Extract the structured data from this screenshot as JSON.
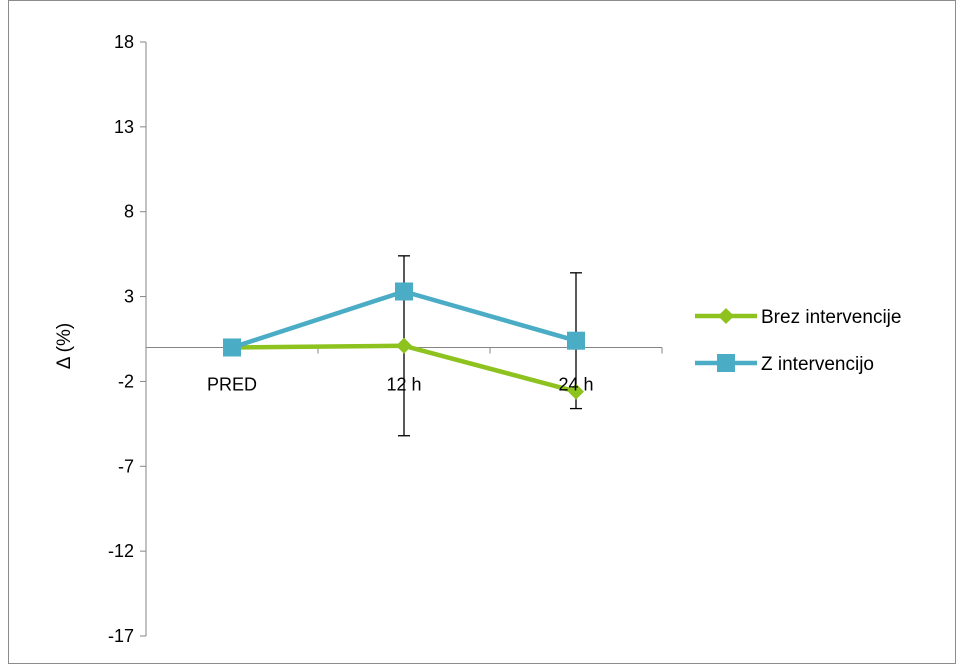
{
  "chart_data": {
    "type": "line",
    "title": "",
    "xlabel": "",
    "ylabel": "Δ (%)",
    "categories": [
      "PRED",
      "12 h",
      "24 h"
    ],
    "ylim": [
      -17,
      18
    ],
    "yticks": [
      18,
      13,
      8,
      3,
      -2,
      -7,
      -12,
      -17
    ],
    "grid": false,
    "legend_position": "right",
    "series": [
      {
        "name": "Brez intervencije",
        "values": [
          0,
          0.1,
          -2.6
        ],
        "error": [
          null,
          5.3,
          null
        ],
        "color": "#8dc21f",
        "marker": "diamond"
      },
      {
        "name": "Z intervencijo",
        "values": [
          0,
          3.3,
          0.4
        ],
        "error": [
          null,
          null,
          4.0
        ],
        "color": "#4bacc6",
        "marker": "square"
      }
    ]
  }
}
